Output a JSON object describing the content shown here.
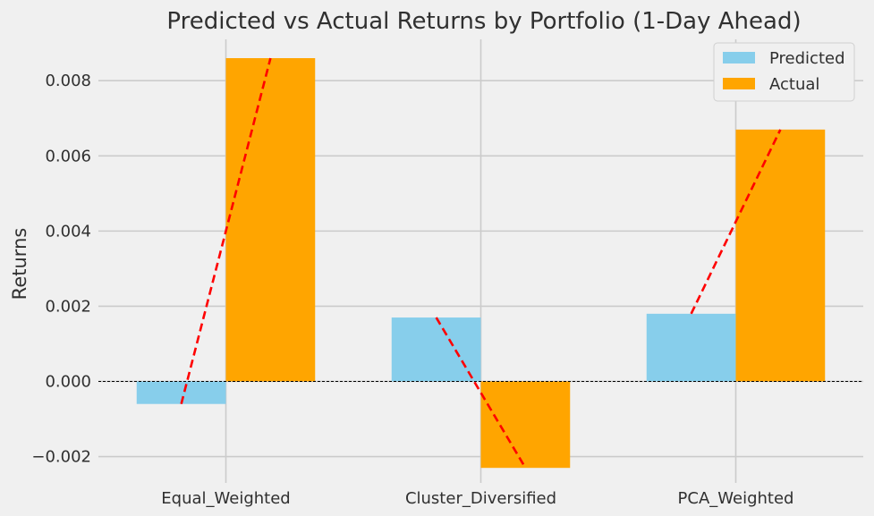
{
  "chart_data": {
    "type": "bar",
    "title": "Predicted vs Actual Returns by Portfolio (1-Day Ahead)",
    "xlabel": "",
    "ylabel": "Returns",
    "categories": [
      "Equal_Weighted",
      "Cluster_Diversified",
      "PCA_Weighted"
    ],
    "series": [
      {
        "name": "Predicted",
        "color": "#87ceeb",
        "values": [
          -0.0006,
          0.0017,
          0.0018
        ]
      },
      {
        "name": "Actual",
        "color": "#ffa500",
        "values": [
          0.0086,
          -0.0023,
          0.0067
        ]
      }
    ],
    "connector_line": {
      "color": "#ff0000",
      "style": "dashed"
    },
    "zero_line": {
      "color": "#000000",
      "style": "dashed"
    },
    "ylim": [
      -0.0027,
      0.0091
    ],
    "yticks": [
      -0.002,
      0.0,
      0.002,
      0.004,
      0.006,
      0.008
    ],
    "ytick_labels": [
      "−0.002",
      "0.000",
      "0.002",
      "0.004",
      "0.006",
      "0.008"
    ],
    "grid": true,
    "legend_position": "top-right"
  }
}
